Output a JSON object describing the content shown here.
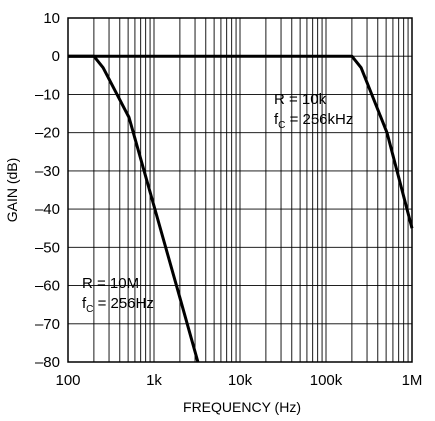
{
  "chart_data": {
    "type": "line",
    "title": "",
    "xlabel": "FREQUENCY (Hz)",
    "ylabel": "GAIN (dB)",
    "x_scale": "log",
    "xlim": [
      100,
      1000000
    ],
    "ylim": [
      -80,
      10
    ],
    "grid": true,
    "x_ticks": [
      {
        "value": 100,
        "label": "100"
      },
      {
        "value": 1000,
        "label": "1k"
      },
      {
        "value": 10000,
        "label": "10k"
      },
      {
        "value": 100000,
        "label": "100k"
      },
      {
        "value": 1000000,
        "label": "1M"
      }
    ],
    "y_ticks": [
      {
        "value": 10,
        "label": "10"
      },
      {
        "value": 0,
        "label": "0"
      },
      {
        "value": -10,
        "label": "–10"
      },
      {
        "value": -20,
        "label": "–20"
      },
      {
        "value": -30,
        "label": "–30"
      },
      {
        "value": -40,
        "label": "–40"
      },
      {
        "value": -50,
        "label": "–50"
      },
      {
        "value": -60,
        "label": "–60"
      },
      {
        "value": -70,
        "label": "–70"
      },
      {
        "value": -80,
        "label": "–80"
      }
    ],
    "series": [
      {
        "points": [
          {
            "x": 100,
            "y": 0
          },
          {
            "x": 200,
            "y": 0
          },
          {
            "x": 256,
            "y": -3
          },
          {
            "x": 512,
            "y": -16
          },
          {
            "x": 1024,
            "y": -40
          },
          {
            "x": 2048,
            "y": -64
          },
          {
            "x": 3240,
            "y": -80
          }
        ]
      },
      {
        "points": [
          {
            "x": 100,
            "y": 0
          },
          {
            "x": 200000,
            "y": 0
          },
          {
            "x": 256000,
            "y": -3
          },
          {
            "x": 512000,
            "y": -20
          },
          {
            "x": 1000000,
            "y": -45
          }
        ]
      }
    ],
    "annotations": [
      {
        "line1": "R = 10k",
        "line2_main": "f",
        "line2_sub": "C",
        "line2_rest": " = 256kHz"
      },
      {
        "line1": "R = 10M",
        "line2_main": "f",
        "line2_sub": "C",
        "line2_rest": " = 256Hz"
      }
    ]
  }
}
